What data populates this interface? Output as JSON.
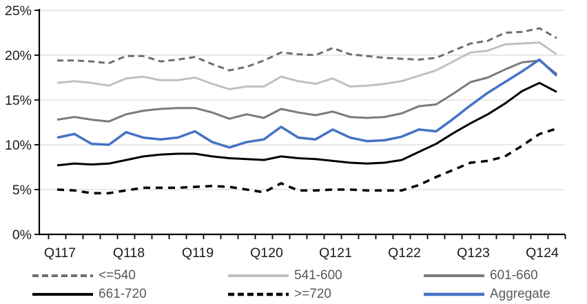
{
  "chart_data": {
    "type": "line",
    "title": "",
    "xlabel": "",
    "ylabel": "",
    "ylim": [
      0,
      25
    ],
    "y_tick_step": 5,
    "y_tick_labels": [
      "0%",
      "5%",
      "10%",
      "15%",
      "20%",
      "25%"
    ],
    "x_tick_labels": [
      "Q117",
      "Q118",
      "Q119",
      "Q120",
      "Q121",
      "Q122",
      "Q123",
      "Q124"
    ],
    "x_label_point_indices": [
      0,
      4,
      8,
      12,
      16,
      20,
      24,
      28
    ],
    "n_points": 30,
    "points_per_year": 4,
    "grid": "horizontal",
    "legend_position": "bottom",
    "series": [
      {
        "name": "<=540",
        "key": "le540",
        "color": "#6E6E6E",
        "dash": "9 6",
        "width": 3,
        "values": [
          19.4,
          19.4,
          19.3,
          19.1,
          19.9,
          19.9,
          19.3,
          19.5,
          19.8,
          19.0,
          18.3,
          18.7,
          19.4,
          20.3,
          20.1,
          20.0,
          20.8,
          20.1,
          19.9,
          19.7,
          19.6,
          19.5,
          19.7,
          20.5,
          21.3,
          21.6,
          22.5,
          22.6,
          23.0,
          21.9
        ]
      },
      {
        "name": "541-600",
        "key": "s541-600",
        "color": "#C0C0C0",
        "dash": "",
        "width": 3,
        "values": [
          16.9,
          17.1,
          16.9,
          16.6,
          17.4,
          17.6,
          17.2,
          17.2,
          17.5,
          16.8,
          16.2,
          16.5,
          16.5,
          17.6,
          17.1,
          16.8,
          17.4,
          16.5,
          16.6,
          16.8,
          17.1,
          17.7,
          18.3,
          19.3,
          20.3,
          20.5,
          21.2,
          21.3,
          21.4,
          20.1
        ]
      },
      {
        "name": "601-660",
        "key": "s601-660",
        "color": "#7A7A7A",
        "dash": "",
        "width": 3,
        "values": [
          12.8,
          13.1,
          12.8,
          12.6,
          13.4,
          13.8,
          14.0,
          14.1,
          14.1,
          13.6,
          12.9,
          13.4,
          13.0,
          14.0,
          13.6,
          13.3,
          13.7,
          13.1,
          13.0,
          13.1,
          13.5,
          14.3,
          14.5,
          15.7,
          17.0,
          17.5,
          18.4,
          19.2,
          19.4,
          17.9
        ]
      },
      {
        "name": "661-720",
        "key": "s661-720",
        "color": "#000000",
        "dash": "",
        "width": 3,
        "values": [
          7.7,
          7.9,
          7.8,
          7.9,
          8.3,
          8.7,
          8.9,
          9.0,
          9.0,
          8.7,
          8.5,
          8.4,
          8.3,
          8.7,
          8.5,
          8.4,
          8.2,
          8.0,
          7.9,
          8.0,
          8.3,
          9.2,
          10.1,
          11.3,
          12.4,
          13.4,
          14.6,
          16.0,
          16.9,
          15.9
        ]
      },
      {
        "name": ">=720",
        "key": "ge720",
        "color": "#000000",
        "dash": "10 8",
        "width": 3.5,
        "values": [
          5.0,
          4.9,
          4.6,
          4.6,
          4.9,
          5.2,
          5.2,
          5.2,
          5.3,
          5.4,
          5.3,
          5.0,
          4.7,
          5.7,
          4.9,
          4.9,
          5.0,
          5.0,
          4.9,
          4.9,
          4.9,
          5.5,
          6.4,
          7.2,
          8.0,
          8.2,
          8.7,
          9.9,
          11.2,
          11.8
        ]
      },
      {
        "name": "Aggregate",
        "key": "aggregate",
        "color": "#4472C4",
        "dash": "",
        "width": 3.5,
        "values": [
          10.8,
          11.2,
          10.1,
          10.0,
          11.4,
          10.8,
          10.6,
          10.8,
          11.5,
          10.3,
          9.7,
          10.3,
          10.6,
          12.0,
          10.8,
          10.6,
          11.7,
          10.8,
          10.4,
          10.5,
          10.9,
          11.7,
          11.5,
          12.9,
          14.4,
          15.8,
          17.0,
          18.2,
          19.5,
          17.7
        ]
      }
    ],
    "colors": {
      "gridline": "#D9D9D9",
      "axis": "#000000",
      "axis_tick_label": "#1A1A1A",
      "legend_text": "#595959",
      "background": "#FFFFFF",
      "accent_blue": "#4472C4"
    },
    "legend": {
      "rows": [
        [
          {
            "series_index": 0
          },
          {
            "series_index": 1
          },
          {
            "series_index": 2
          }
        ],
        [
          {
            "series_index": 3
          },
          {
            "series_index": 4
          },
          {
            "series_index": 5
          }
        ]
      ]
    }
  }
}
